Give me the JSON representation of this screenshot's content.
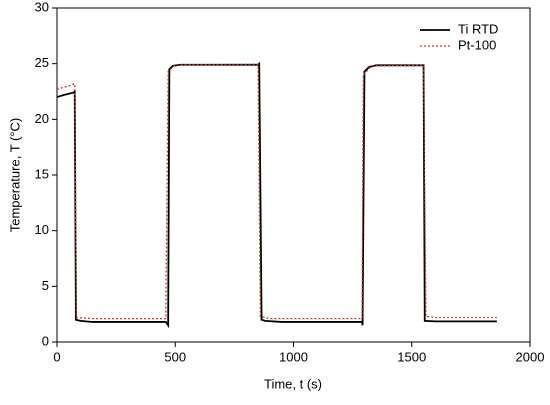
{
  "chart_data": {
    "type": "line",
    "xlabel": "Time, t  (s)",
    "ylabel": "Temperature, T (°C)",
    "xlim": [
      0,
      2000
    ],
    "ylim": [
      0,
      30
    ],
    "xticks": [
      0,
      500,
      1000,
      1500,
      2000
    ],
    "yticks": [
      0,
      5,
      10,
      15,
      20,
      25,
      30
    ],
    "legend": "upper right",
    "series": [
      {
        "name": "Ti RTD",
        "color": "#000000",
        "dash": "solid",
        "x": [
          0,
          30,
          70,
          75,
          80,
          100,
          150,
          460,
          470,
          475,
          490,
          520,
          850,
          855,
          865,
          880,
          950,
          1290,
          1292,
          1300,
          1320,
          1350,
          1550,
          1555,
          1600,
          1860
        ],
        "values": [
          22,
          22.2,
          22.4,
          22.5,
          2.0,
          1.9,
          1.8,
          1.8,
          1.5,
          24.5,
          24.8,
          24.9,
          24.9,
          25.0,
          2.0,
          1.9,
          1.8,
          1.8,
          1.5,
          24.3,
          24.7,
          24.85,
          24.85,
          1.9,
          1.85,
          1.85
        ]
      },
      {
        "name": "Pt-100",
        "color": "#c0392b",
        "dash": "dotted",
        "x": [
          0,
          50,
          75,
          82,
          150,
          460,
          470,
          500,
          850,
          860,
          900,
          1290,
          1295,
          1330,
          1550,
          1560,
          1600,
          1860
        ],
        "values": [
          22.7,
          23.0,
          23.2,
          2.2,
          2.1,
          2.1,
          24.3,
          24.9,
          24.95,
          2.3,
          2.1,
          2.1,
          24.0,
          24.8,
          24.85,
          2.3,
          2.2,
          2.2
        ]
      }
    ]
  }
}
